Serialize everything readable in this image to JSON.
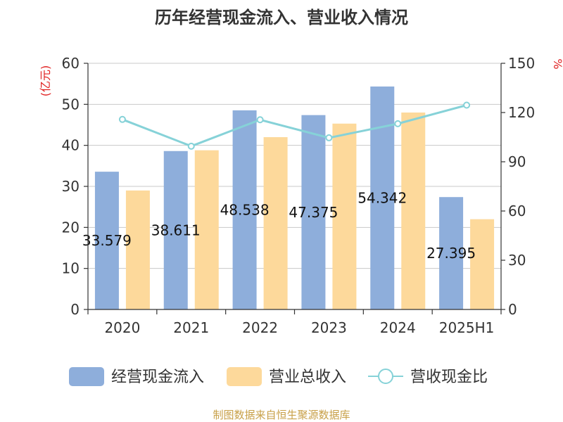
{
  "chart_data": {
    "type": "bar",
    "title": "历年经营现金流入、营业收入情况",
    "y_left_label": "(亿元)",
    "y_right_label": "%",
    "categories": [
      "2020",
      "2021",
      "2022",
      "2023",
      "2024",
      "2025H1"
    ],
    "y_left_lim": [
      0,
      60
    ],
    "y_left_ticks": [
      0,
      10,
      20,
      30,
      40,
      50,
      60
    ],
    "y_right_lim": [
      0,
      150
    ],
    "y_right_ticks": [
      0,
      30,
      60,
      90,
      120,
      150
    ],
    "grid": true,
    "legend_position": "bottom",
    "series": [
      {
        "name": "经营现金流入",
        "kind": "bar",
        "axis": "left",
        "color": "#8eaedb",
        "values": [
          33.579,
          38.611,
          48.538,
          47.375,
          54.342,
          27.395
        ],
        "labels": [
          "33.579",
          "38.611",
          "48.538",
          "47.375",
          "54.342",
          "27.395"
        ]
      },
      {
        "name": "营业总收入",
        "kind": "bar",
        "axis": "left",
        "color": "#fdd99b",
        "values": [
          29.0,
          38.8,
          42.0,
          45.3,
          48.0,
          22.0
        ]
      },
      {
        "name": "营收现金比",
        "kind": "line",
        "axis": "right",
        "color": "#86d2d8",
        "values": [
          115.8,
          99.5,
          115.6,
          104.6,
          113.2,
          124.5
        ]
      }
    ],
    "source": "制图数据来自恒生聚源数据库"
  }
}
